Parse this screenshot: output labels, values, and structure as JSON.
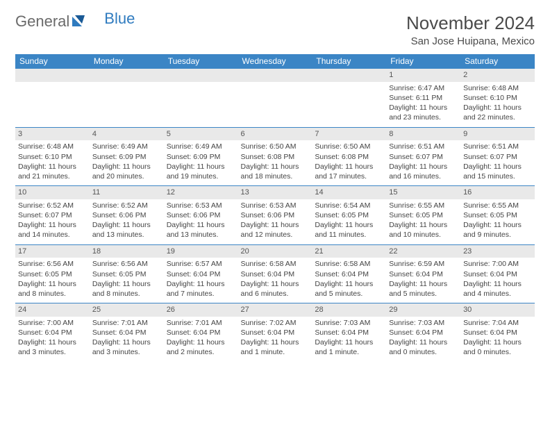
{
  "brand": {
    "general": "General",
    "blue": "Blue"
  },
  "title": "November 2024",
  "location": "San Jose Huipana, Mexico",
  "colors": {
    "header_bg": "#3b85c5",
    "header_text": "#ffffff",
    "daynum_bg": "#e9e9e9",
    "border": "#3b85c5",
    "text": "#444444",
    "brand_gray": "#6a6a6a",
    "brand_blue": "#2f7bbf"
  },
  "weekdays": [
    "Sunday",
    "Monday",
    "Tuesday",
    "Wednesday",
    "Thursday",
    "Friday",
    "Saturday"
  ],
  "weeks": [
    [
      {
        "n": "",
        "sunrise": "",
        "sunset": "",
        "daylight": ""
      },
      {
        "n": "",
        "sunrise": "",
        "sunset": "",
        "daylight": ""
      },
      {
        "n": "",
        "sunrise": "",
        "sunset": "",
        "daylight": ""
      },
      {
        "n": "",
        "sunrise": "",
        "sunset": "",
        "daylight": ""
      },
      {
        "n": "",
        "sunrise": "",
        "sunset": "",
        "daylight": ""
      },
      {
        "n": "1",
        "sunrise": "Sunrise: 6:47 AM",
        "sunset": "Sunset: 6:11 PM",
        "daylight": "Daylight: 11 hours and 23 minutes."
      },
      {
        "n": "2",
        "sunrise": "Sunrise: 6:48 AM",
        "sunset": "Sunset: 6:10 PM",
        "daylight": "Daylight: 11 hours and 22 minutes."
      }
    ],
    [
      {
        "n": "3",
        "sunrise": "Sunrise: 6:48 AM",
        "sunset": "Sunset: 6:10 PM",
        "daylight": "Daylight: 11 hours and 21 minutes."
      },
      {
        "n": "4",
        "sunrise": "Sunrise: 6:49 AM",
        "sunset": "Sunset: 6:09 PM",
        "daylight": "Daylight: 11 hours and 20 minutes."
      },
      {
        "n": "5",
        "sunrise": "Sunrise: 6:49 AM",
        "sunset": "Sunset: 6:09 PM",
        "daylight": "Daylight: 11 hours and 19 minutes."
      },
      {
        "n": "6",
        "sunrise": "Sunrise: 6:50 AM",
        "sunset": "Sunset: 6:08 PM",
        "daylight": "Daylight: 11 hours and 18 minutes."
      },
      {
        "n": "7",
        "sunrise": "Sunrise: 6:50 AM",
        "sunset": "Sunset: 6:08 PM",
        "daylight": "Daylight: 11 hours and 17 minutes."
      },
      {
        "n": "8",
        "sunrise": "Sunrise: 6:51 AM",
        "sunset": "Sunset: 6:07 PM",
        "daylight": "Daylight: 11 hours and 16 minutes."
      },
      {
        "n": "9",
        "sunrise": "Sunrise: 6:51 AM",
        "sunset": "Sunset: 6:07 PM",
        "daylight": "Daylight: 11 hours and 15 minutes."
      }
    ],
    [
      {
        "n": "10",
        "sunrise": "Sunrise: 6:52 AM",
        "sunset": "Sunset: 6:07 PM",
        "daylight": "Daylight: 11 hours and 14 minutes."
      },
      {
        "n": "11",
        "sunrise": "Sunrise: 6:52 AM",
        "sunset": "Sunset: 6:06 PM",
        "daylight": "Daylight: 11 hours and 13 minutes."
      },
      {
        "n": "12",
        "sunrise": "Sunrise: 6:53 AM",
        "sunset": "Sunset: 6:06 PM",
        "daylight": "Daylight: 11 hours and 13 minutes."
      },
      {
        "n": "13",
        "sunrise": "Sunrise: 6:53 AM",
        "sunset": "Sunset: 6:06 PM",
        "daylight": "Daylight: 11 hours and 12 minutes."
      },
      {
        "n": "14",
        "sunrise": "Sunrise: 6:54 AM",
        "sunset": "Sunset: 6:05 PM",
        "daylight": "Daylight: 11 hours and 11 minutes."
      },
      {
        "n": "15",
        "sunrise": "Sunrise: 6:55 AM",
        "sunset": "Sunset: 6:05 PM",
        "daylight": "Daylight: 11 hours and 10 minutes."
      },
      {
        "n": "16",
        "sunrise": "Sunrise: 6:55 AM",
        "sunset": "Sunset: 6:05 PM",
        "daylight": "Daylight: 11 hours and 9 minutes."
      }
    ],
    [
      {
        "n": "17",
        "sunrise": "Sunrise: 6:56 AM",
        "sunset": "Sunset: 6:05 PM",
        "daylight": "Daylight: 11 hours and 8 minutes."
      },
      {
        "n": "18",
        "sunrise": "Sunrise: 6:56 AM",
        "sunset": "Sunset: 6:05 PM",
        "daylight": "Daylight: 11 hours and 8 minutes."
      },
      {
        "n": "19",
        "sunrise": "Sunrise: 6:57 AM",
        "sunset": "Sunset: 6:04 PM",
        "daylight": "Daylight: 11 hours and 7 minutes."
      },
      {
        "n": "20",
        "sunrise": "Sunrise: 6:58 AM",
        "sunset": "Sunset: 6:04 PM",
        "daylight": "Daylight: 11 hours and 6 minutes."
      },
      {
        "n": "21",
        "sunrise": "Sunrise: 6:58 AM",
        "sunset": "Sunset: 6:04 PM",
        "daylight": "Daylight: 11 hours and 5 minutes."
      },
      {
        "n": "22",
        "sunrise": "Sunrise: 6:59 AM",
        "sunset": "Sunset: 6:04 PM",
        "daylight": "Daylight: 11 hours and 5 minutes."
      },
      {
        "n": "23",
        "sunrise": "Sunrise: 7:00 AM",
        "sunset": "Sunset: 6:04 PM",
        "daylight": "Daylight: 11 hours and 4 minutes."
      }
    ],
    [
      {
        "n": "24",
        "sunrise": "Sunrise: 7:00 AM",
        "sunset": "Sunset: 6:04 PM",
        "daylight": "Daylight: 11 hours and 3 minutes."
      },
      {
        "n": "25",
        "sunrise": "Sunrise: 7:01 AM",
        "sunset": "Sunset: 6:04 PM",
        "daylight": "Daylight: 11 hours and 3 minutes."
      },
      {
        "n": "26",
        "sunrise": "Sunrise: 7:01 AM",
        "sunset": "Sunset: 6:04 PM",
        "daylight": "Daylight: 11 hours and 2 minutes."
      },
      {
        "n": "27",
        "sunrise": "Sunrise: 7:02 AM",
        "sunset": "Sunset: 6:04 PM",
        "daylight": "Daylight: 11 hours and 1 minute."
      },
      {
        "n": "28",
        "sunrise": "Sunrise: 7:03 AM",
        "sunset": "Sunset: 6:04 PM",
        "daylight": "Daylight: 11 hours and 1 minute."
      },
      {
        "n": "29",
        "sunrise": "Sunrise: 7:03 AM",
        "sunset": "Sunset: 6:04 PM",
        "daylight": "Daylight: 11 hours and 0 minutes."
      },
      {
        "n": "30",
        "sunrise": "Sunrise: 7:04 AM",
        "sunset": "Sunset: 6:04 PM",
        "daylight": "Daylight: 11 hours and 0 minutes."
      }
    ]
  ]
}
